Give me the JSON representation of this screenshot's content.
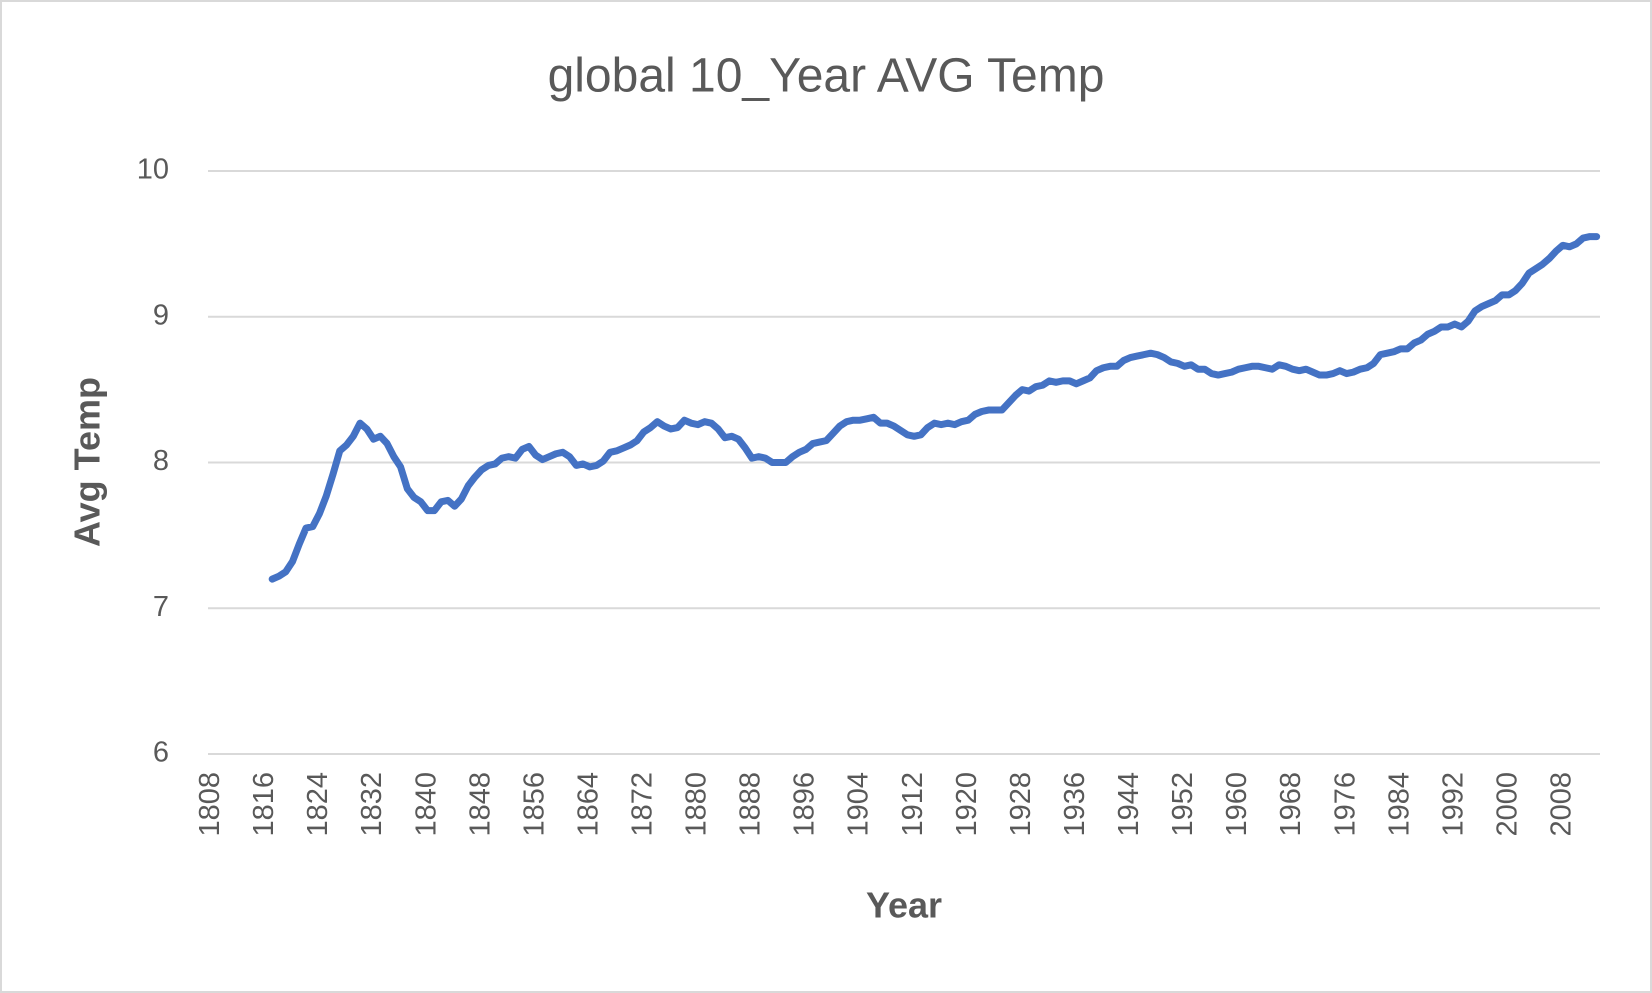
{
  "chart_data": {
    "type": "line",
    "title": "global 10_Year AVG Temp",
    "x_label": "Year",
    "y_label": "Avg Temp",
    "categories": [
      1808,
      null,
      null,
      null,
      null,
      null,
      null,
      null,
      1816,
      null,
      null,
      null,
      null,
      null,
      null,
      null,
      1824,
      null,
      null,
      null,
      null,
      null,
      null,
      null,
      1832,
      null,
      null,
      null,
      null,
      null,
      null,
      null,
      1840,
      null,
      null,
      null,
      null,
      null,
      null,
      null,
      1848,
      null,
      null,
      null,
      null,
      null,
      null,
      null,
      1856,
      null,
      null,
      null,
      null,
      null,
      null,
      null,
      1864,
      null,
      null,
      null,
      null,
      null,
      null,
      null,
      1872,
      null,
      null,
      null,
      null,
      null,
      null,
      null,
      1880,
      null,
      null,
      null,
      null,
      null,
      null,
      null,
      1888,
      null,
      null,
      null,
      null,
      null,
      null,
      null,
      1896,
      null,
      null,
      null,
      null,
      null,
      null,
      null,
      1904,
      null,
      null,
      null,
      null,
      null,
      null,
      null,
      1912,
      null,
      null,
      null,
      null,
      null,
      null,
      null,
      1920,
      null,
      null,
      null,
      null,
      null,
      null,
      null,
      1928,
      null,
      null,
      null,
      null,
      null,
      null,
      null,
      1936,
      null,
      null,
      null,
      null,
      null,
      null,
      null,
      1944,
      null,
      null,
      null,
      null,
      null,
      null,
      null,
      1952,
      null,
      null,
      null,
      null,
      null,
      null,
      null,
      1960,
      null,
      null,
      null,
      null,
      null,
      null,
      null,
      1968,
      null,
      null,
      null,
      null,
      null,
      null,
      null,
      1976,
      null,
      null,
      null,
      null,
      null,
      null,
      null,
      1984,
      null,
      null,
      null,
      null,
      null,
      null,
      null,
      1992,
      null,
      null,
      null,
      null,
      null,
      null,
      null,
      2000,
      null,
      null,
      null,
      null,
      null,
      null,
      null,
      2008,
      null,
      null,
      null,
      null,
      null
    ],
    "values": [
      null,
      null,
      null,
      null,
      null,
      null,
      null,
      null,
      null,
      7.2,
      7.22,
      7.25,
      7.32,
      7.44,
      7.55,
      7.56,
      7.65,
      7.77,
      7.92,
      8.08,
      8.12,
      8.18,
      8.27,
      8.23,
      8.16,
      8.18,
      8.13,
      8.04,
      7.97,
      7.82,
      7.76,
      7.73,
      7.67,
      7.67,
      7.73,
      7.74,
      7.7,
      7.75,
      7.84,
      7.9,
      7.95,
      7.98,
      7.99,
      8.03,
      8.04,
      8.03,
      8.09,
      8.11,
      8.05,
      8.02,
      8.04,
      8.06,
      8.07,
      8.04,
      7.98,
      7.99,
      7.97,
      7.98,
      8.01,
      8.07,
      8.08,
      8.1,
      8.12,
      8.15,
      8.21,
      8.24,
      8.28,
      8.25,
      8.23,
      8.24,
      8.29,
      8.27,
      8.26,
      8.28,
      8.27,
      8.23,
      8.17,
      8.18,
      8.16,
      8.1,
      8.03,
      8.04,
      8.03,
      8.0,
      8.0,
      8.0,
      8.04,
      8.07,
      8.09,
      8.13,
      8.14,
      8.15,
      8.2,
      8.25,
      8.28,
      8.29,
      8.29,
      8.3,
      8.31,
      8.27,
      8.27,
      8.25,
      8.22,
      8.19,
      8.18,
      8.19,
      8.24,
      8.27,
      8.26,
      8.27,
      8.26,
      8.28,
      8.29,
      8.33,
      8.35,
      8.36,
      8.36,
      8.36,
      8.41,
      8.46,
      8.5,
      8.49,
      8.52,
      8.53,
      8.56,
      8.55,
      8.56,
      8.56,
      8.54,
      8.56,
      8.58,
      8.63,
      8.65,
      8.66,
      8.66,
      8.7,
      8.72,
      8.73,
      8.74,
      8.75,
      8.74,
      8.72,
      8.69,
      8.68,
      8.66,
      8.67,
      8.64,
      8.64,
      8.61,
      8.6,
      8.61,
      8.62,
      8.64,
      8.65,
      8.66,
      8.66,
      8.65,
      8.64,
      8.67,
      8.66,
      8.64,
      8.63,
      8.64,
      8.62,
      8.6,
      8.6,
      8.61,
      8.63,
      8.61,
      8.62,
      8.64,
      8.65,
      8.68,
      8.74,
      8.75,
      8.76,
      8.78,
      8.78,
      8.82,
      8.84,
      8.88,
      8.9,
      8.93,
      8.93,
      8.95,
      8.93,
      8.97,
      9.04,
      9.07,
      9.09,
      9.11,
      9.15,
      9.15,
      9.18,
      9.23,
      9.3,
      9.33,
      9.36,
      9.4,
      9.45,
      9.49,
      9.48,
      9.5,
      9.54,
      9.55,
      9.55
    ],
    "color": "#4472c4",
    "ylim": [
      6,
      10
    ],
    "yticks": [
      6,
      7,
      8,
      9,
      10
    ],
    "grid": true
  }
}
